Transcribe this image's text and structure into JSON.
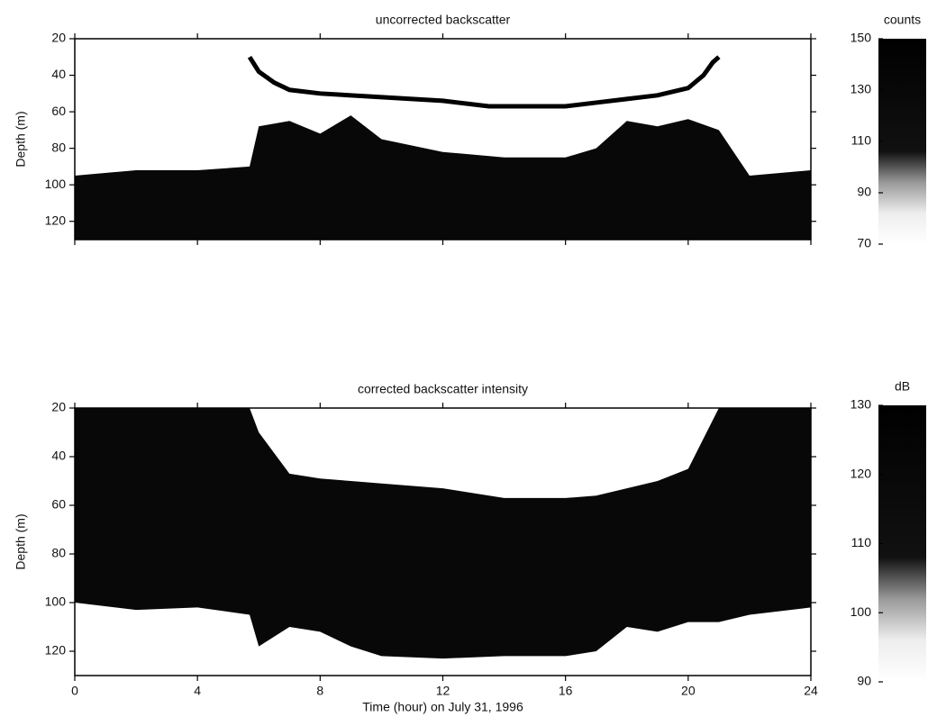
{
  "chart_data": [
    {
      "type": "heatmap",
      "title": "uncorrected backscatter",
      "ylabel": "Depth (m)",
      "xlim": [
        0,
        24
      ],
      "xticks": [
        0,
        4,
        8,
        12,
        16,
        20,
        24
      ],
      "xtick_labels": false,
      "ylim": [
        20,
        130
      ],
      "yticks": [
        20,
        40,
        60,
        80,
        100,
        120
      ],
      "x": [
        0,
        2,
        4,
        5.7,
        6,
        7,
        8,
        9,
        10,
        12,
        14,
        16,
        17,
        18,
        19,
        20,
        21,
        22,
        24
      ],
      "echo_top": [
        95,
        92,
        92,
        90,
        68,
        65,
        72,
        62,
        75,
        82,
        85,
        85,
        80,
        65,
        68,
        64,
        70,
        95,
        92
      ],
      "track": {
        "x": [
          5.7,
          6,
          6.5,
          7,
          8,
          10,
          12,
          13.5,
          16,
          17,
          18,
          19,
          20,
          20.5,
          20.8,
          21
        ],
        "values": [
          30,
          38,
          44,
          48,
          50,
          52,
          54,
          57,
          57,
          55,
          53,
          51,
          47,
          40,
          33,
          30
        ]
      },
      "colorbar": {
        "label": "counts",
        "lim": [
          70,
          150
        ],
        "ticks": [
          70,
          90,
          110,
          130,
          150
        ]
      }
    },
    {
      "type": "heatmap",
      "title": "corrected backscatter intensity",
      "ylabel": "Depth (m)",
      "xlabel": "Time (hour) on July 31, 1996",
      "xlim": [
        0,
        24
      ],
      "xticks": [
        0,
        4,
        8,
        12,
        16,
        20,
        24
      ],
      "xtick_labels": true,
      "ylim": [
        20,
        130
      ],
      "yticks": [
        20,
        40,
        60,
        80,
        100,
        120
      ],
      "x": [
        0,
        2,
        4,
        5.7,
        6,
        7,
        8,
        9,
        10,
        12,
        14,
        16,
        17,
        18,
        19,
        20,
        21,
        22,
        24
      ],
      "echo_top": [
        20,
        20,
        20,
        20,
        30,
        47,
        49,
        50,
        51,
        53,
        57,
        57,
        56,
        53,
        50,
        45,
        20,
        20,
        20
      ],
      "echo_bottom": [
        100,
        103,
        102,
        105,
        118,
        110,
        112,
        118,
        122,
        123,
        122,
        122,
        120,
        110,
        112,
        108,
        108,
        105,
        102
      ],
      "colorbar": {
        "label": "dB",
        "lim": [
          90,
          130
        ],
        "ticks": [
          90,
          100,
          110,
          120,
          130
        ]
      }
    }
  ]
}
